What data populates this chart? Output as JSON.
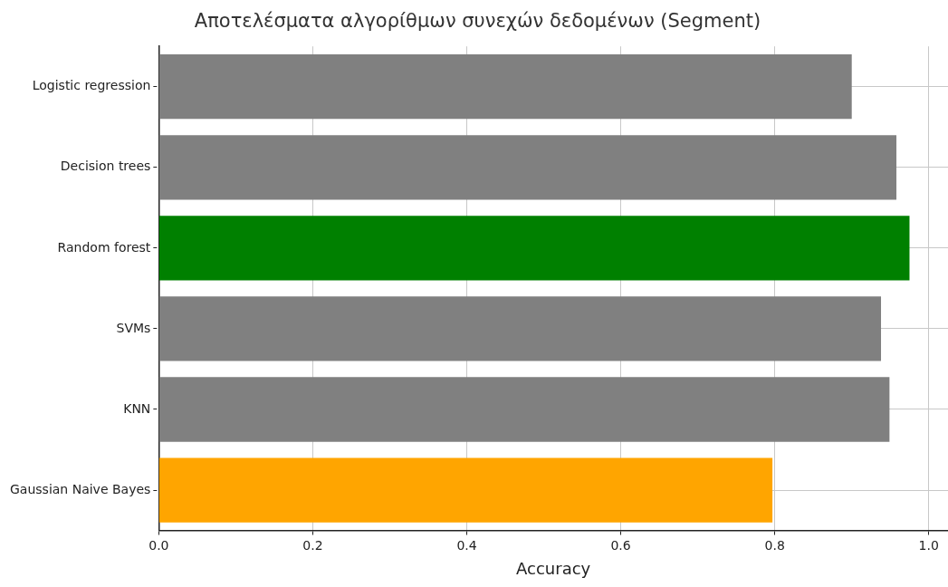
{
  "chart_data": {
    "type": "bar",
    "orientation": "horizontal",
    "title": "Αποτελέσματα αλγορίθμων συνεχών δεδομένων (Segment)",
    "xlabel": "Accuracy",
    "categories": [
      "Logistic regression",
      "Decision trees",
      "Random forest",
      "SVMs",
      "KNN",
      "Gaussian Naive Bayes"
    ],
    "values": [
      0.9,
      0.958,
      0.975,
      0.938,
      0.949,
      0.797
    ],
    "colors": [
      "#808080",
      "#808080",
      "#008000",
      "#808080",
      "#808080",
      "#ffa500"
    ],
    "xlim": [
      0,
      1.025
    ],
    "xticks": [
      {
        "value": 0,
        "label": "0.0"
      },
      {
        "value": 0.2,
        "label": "0.2"
      },
      {
        "value": 0.4,
        "label": "0.4"
      },
      {
        "value": 0.6,
        "label": "0.6"
      },
      {
        "value": 0.8,
        "label": "0.8"
      },
      {
        "value": 1,
        "label": "1.0"
      }
    ],
    "grid": true,
    "legend": false
  }
}
